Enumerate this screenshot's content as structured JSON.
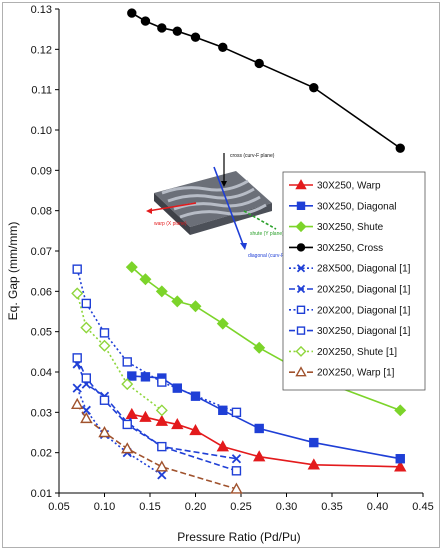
{
  "chart_data": {
    "type": "line",
    "xlabel": "Pressure Ratio (Pd/Pu)",
    "ylabel": "Eq. Gap (mm/mm)",
    "xlim": [
      0.05,
      0.45
    ],
    "ylim": [
      0.01,
      0.13
    ],
    "xticks": [
      "0.05",
      "0.10",
      "0.15",
      "0.20",
      "0.25",
      "0.30",
      "0.35",
      "0.40",
      "0.45"
    ],
    "yticks": [
      "0.01",
      "0.02",
      "0.03",
      "0.04",
      "0.05",
      "0.06",
      "0.07",
      "0.08",
      "0.09",
      "0.10",
      "0.11",
      "0.12",
      "0.13"
    ],
    "grid": false,
    "legend_position": "right",
    "inset_labels": [
      "cross (curv-F plane)",
      "warp (X plane)",
      "diagonal (curv-F plane)",
      "shute (Y plane)"
    ],
    "series": [
      {
        "name": "30X250, Warp",
        "color": "#e31a1c",
        "marker": "triangle",
        "dash": "solid",
        "x": [
          0.13,
          0.145,
          0.163,
          0.18,
          0.2,
          0.23,
          0.27,
          0.33,
          0.425
        ],
        "y": [
          0.0295,
          0.0288,
          0.0278,
          0.027,
          0.0255,
          0.0215,
          0.019,
          0.017,
          0.0165
        ]
      },
      {
        "name": "30X250, Diagonal",
        "color": "#1f3fd6",
        "marker": "square",
        "dash": "solid",
        "x": [
          0.13,
          0.145,
          0.163,
          0.18,
          0.2,
          0.23,
          0.27,
          0.33,
          0.425
        ],
        "y": [
          0.039,
          0.0388,
          0.0385,
          0.036,
          0.034,
          0.0305,
          0.026,
          0.0225,
          0.0185
        ]
      },
      {
        "name": "30X250, Shute",
        "color": "#7cd42a",
        "marker": "diamond",
        "dash": "solid",
        "x": [
          0.13,
          0.145,
          0.163,
          0.18,
          0.2,
          0.23,
          0.27,
          0.33,
          0.425
        ],
        "y": [
          0.066,
          0.063,
          0.06,
          0.0575,
          0.0563,
          0.052,
          0.046,
          0.0385,
          0.0305
        ]
      },
      {
        "name": "30X250, Cross",
        "color": "#000000",
        "marker": "circle",
        "dash": "solid",
        "x": [
          0.13,
          0.145,
          0.163,
          0.18,
          0.2,
          0.23,
          0.27,
          0.33,
          0.425
        ],
        "y": [
          0.129,
          0.127,
          0.1253,
          0.1245,
          0.123,
          0.1205,
          0.1165,
          0.1105,
          0.0955
        ]
      },
      {
        "name": "28X500, Diagonal [1]",
        "color": "#1f3fd6",
        "marker": "x",
        "dash": "dot",
        "x": [
          0.07,
          0.08,
          0.1,
          0.125,
          0.163
        ],
        "y": [
          0.036,
          0.0305,
          0.0245,
          0.02,
          0.0145
        ]
      },
      {
        "name": "20X250, Diagonal [1]",
        "color": "#1f3fd6",
        "marker": "x",
        "dash": "dash",
        "x": [
          0.07,
          0.08,
          0.1,
          0.125,
          0.163,
          0.245
        ],
        "y": [
          0.042,
          0.037,
          0.034,
          0.0275,
          0.0215,
          0.0185
        ]
      },
      {
        "name": "20X200, Diagonal [1]",
        "color": "#1f3fd6",
        "marker": "square-open",
        "dash": "dot",
        "x": [
          0.07,
          0.08,
          0.1,
          0.125,
          0.163,
          0.245
        ],
        "y": [
          0.0655,
          0.057,
          0.0497,
          0.0425,
          0.0375,
          0.03
        ]
      },
      {
        "name": "30X250, Diagonal [1]",
        "color": "#1f3fd6",
        "marker": "square-open",
        "dash": "dash",
        "x": [
          0.07,
          0.08,
          0.1,
          0.125,
          0.163,
          0.245
        ],
        "y": [
          0.0435,
          0.0385,
          0.033,
          0.027,
          0.0215,
          0.0155
        ]
      },
      {
        "name": "20X250, Shute [1]",
        "color": "#8fd63c",
        "marker": "diamond-open",
        "dash": "dot",
        "x": [
          0.07,
          0.08,
          0.1,
          0.125,
          0.163
        ],
        "y": [
          0.0595,
          0.051,
          0.0465,
          0.037,
          0.0305
        ]
      },
      {
        "name": "20X250, Warp [1]",
        "color": "#a0522d",
        "marker": "triangle-open",
        "dash": "dash",
        "x": [
          0.07,
          0.08,
          0.1,
          0.125,
          0.163,
          0.245
        ],
        "y": [
          0.032,
          0.0285,
          0.025,
          0.021,
          0.0165,
          0.011
        ]
      }
    ]
  }
}
